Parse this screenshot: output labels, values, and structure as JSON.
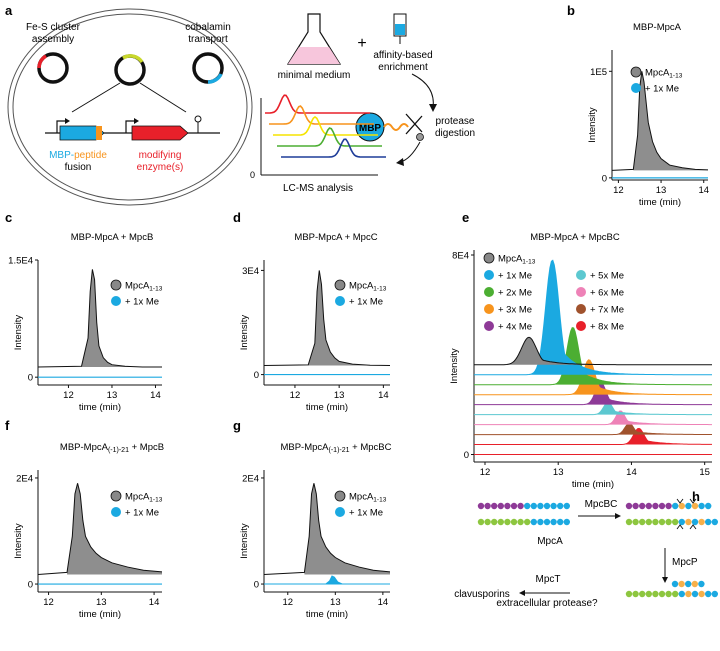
{
  "figure": {
    "panel_letters": {
      "a": "a",
      "b": "b",
      "c": "c",
      "d": "d",
      "e": "e",
      "f": "f",
      "g": "g",
      "h": "h"
    }
  },
  "schematic_a": {
    "fes_label_1": "Fe-S cluster",
    "fes_label_2": "assembly",
    "cobalamin_label_1": "cobalamin",
    "cobalamin_label_2": "transport",
    "mbp_peptide": "MBP-peptide",
    "mbp_part": "MBP-",
    "peptide_part": "peptide",
    "fusion": "fusion",
    "modifying_1": "modifying",
    "modifying_2": "enzyme(s)",
    "minimal_medium": "minimal medium",
    "plus": "+",
    "affinity_1": "affinity-based",
    "affinity_2": "enrichment",
    "mbp": "MBP",
    "protease_1": "protease",
    "protease_2": "digestion",
    "lcms": "LC-MS analysis",
    "zero": "0",
    "colors": {
      "red": "#e8202a",
      "blue": "#1ba9e1",
      "orange": "#f7941d",
      "yellow": "#f5e400",
      "green": "#4cae32",
      "darkblue": "#1f3d99",
      "pink": "#f7c6dc",
      "yellowgreen": "#c9d82c"
    }
  },
  "chart_data": [
    {
      "id": "b",
      "type": "line",
      "title": "MBP-MpcA",
      "ylabel": "Intensity",
      "xlabel": "time (min)",
      "xlim": [
        11.85,
        14.1
      ],
      "ylim": [
        -2000,
        120000
      ],
      "xticks": [
        12,
        13,
        14
      ],
      "ytick_labels": [
        "1E5",
        "0"
      ],
      "ytick_values": [
        100000,
        0
      ],
      "series": [
        {
          "name": "MpcA",
          "name_sub": "1-13",
          "color": "#888888",
          "type": "area",
          "baseline": 7000,
          "peak": {
            "x": 12.55,
            "y": 100000
          },
          "x": [
            12.35,
            12.45,
            12.5,
            12.55,
            12.6,
            12.7,
            12.8,
            12.9,
            13.0,
            13.2,
            13.5,
            13.8,
            14.1
          ],
          "y": [
            8000,
            40000,
            85000,
            100000,
            90000,
            52000,
            34000,
            24000,
            18000,
            12000,
            9500,
            8000,
            7500
          ]
        },
        {
          "name": "+ 1x Me",
          "color": "#1ba9e1",
          "type": "line",
          "baseline": 0
        }
      ]
    },
    {
      "id": "c",
      "type": "line",
      "title": "MBP-MpcA + MpcB",
      "ylabel": "Intensity",
      "xlabel": "time (min)",
      "xlim": [
        11.3,
        14.15
      ],
      "ylim": [
        -1000,
        15000
      ],
      "xticks": [
        12,
        13,
        14
      ],
      "ytick_labels": [
        "1.5E4",
        "0"
      ],
      "ytick_values": [
        15000,
        0
      ],
      "series": [
        {
          "name": "MpcA",
          "name_sub": "1-13",
          "color": "#888888",
          "type": "area",
          "baseline": 1300,
          "x": [
            12.3,
            12.45,
            12.5,
            12.55,
            12.6,
            12.65,
            12.7,
            12.8,
            12.9,
            13.0,
            13.3,
            13.7,
            14.15
          ],
          "y": [
            1400,
            5000,
            11000,
            13800,
            12500,
            7000,
            4000,
            2500,
            1900,
            1600,
            1400,
            1300,
            1300
          ]
        },
        {
          "name": "+ 1x Me",
          "color": "#1ba9e1",
          "type": "line",
          "baseline": 0
        }
      ]
    },
    {
      "id": "d",
      "type": "line",
      "title": "MBP-MpcA + MpcC",
      "ylabel": "Intensity",
      "xlabel": "time (min)",
      "xlim": [
        11.3,
        14.15
      ],
      "ylim": [
        -3000,
        33000
      ],
      "xticks": [
        12,
        13,
        14
      ],
      "ytick_labels": [
        "3E4",
        "0"
      ],
      "ytick_values": [
        30000,
        0
      ],
      "series": [
        {
          "name": "MpcA",
          "name_sub": "1-13",
          "color": "#888888",
          "type": "area",
          "baseline": 2600,
          "x": [
            12.3,
            12.45,
            12.5,
            12.55,
            12.6,
            12.65,
            12.7,
            12.8,
            12.9,
            13.0,
            13.3,
            13.7,
            14.15
          ],
          "y": [
            2800,
            9000,
            24000,
            30000,
            26000,
            16000,
            10000,
            6500,
            4800,
            3800,
            3000,
            2700,
            2600
          ]
        },
        {
          "name": "+ 1x Me",
          "color": "#1ba9e1",
          "type": "line",
          "baseline": 0
        }
      ]
    },
    {
      "id": "e",
      "type": "line",
      "title": "MBP-MpcA + MpcBC",
      "ylabel": "Intensity",
      "xlabel": "time (min)",
      "xlim": [
        11.85,
        15.1
      ],
      "ylim": [
        -3000,
        82000
      ],
      "xticks": [
        12,
        13,
        14,
        15
      ],
      "ytick_labels": [
        "8E4",
        "0"
      ],
      "ytick_values": [
        80000,
        0
      ],
      "series": [
        {
          "name": "MpcA",
          "name_sub": "1-13",
          "color": "#888888",
          "offset": 36000,
          "peak_x": 12.6,
          "height": 11000,
          "width": 0.1
        },
        {
          "name": "+ 1x Me",
          "color": "#1ba9e1",
          "offset": 32000,
          "peak_x": 12.92,
          "height": 46000,
          "width": 0.09
        },
        {
          "name": "+ 2x Me",
          "color": "#4cae32",
          "offset": 28000,
          "peak_x": 13.2,
          "height": 23000,
          "width": 0.08
        },
        {
          "name": "+ 3x Me",
          "color": "#f7941d",
          "offset": 24000,
          "peak_x": 13.42,
          "height": 14000,
          "width": 0.08
        },
        {
          "name": "+ 4x Me",
          "color": "#8e3a97",
          "offset": 20000,
          "peak_x": 13.58,
          "height": 9000,
          "width": 0.07
        },
        {
          "name": "+ 5x Me",
          "color": "#5cc8d0",
          "offset": 16000,
          "peak_x": 13.68,
          "height": 5000,
          "width": 0.06
        },
        {
          "name": "+ 6x Me",
          "color": "#ee82b7",
          "offset": 12000,
          "peak_x": 13.85,
          "height": 5500,
          "width": 0.06
        },
        {
          "name": "+ 7x Me",
          "color": "#a0522d",
          "offset": 8000,
          "peak_x": 13.97,
          "height": 4500,
          "width": 0.06
        },
        {
          "name": "+ 8x Me",
          "color": "#e8202a",
          "offset": 4000,
          "peak_x": 14.1,
          "height": 6500,
          "width": 0.07
        }
      ],
      "base_line": {
        "color": "#e8202a",
        "value": 0
      }
    },
    {
      "id": "f",
      "type": "line",
      "title": "MBP-MpcA",
      "title_sub": "(-1)-21",
      "title_suffix": " + MpcB",
      "ylabel": "Intensity",
      "xlabel": "time (min)",
      "xlim": [
        11.8,
        14.15
      ],
      "ylim": [
        -1500,
        21500
      ],
      "xticks": [
        12,
        13,
        14
      ],
      "ytick_labels": [
        "2E4",
        "0"
      ],
      "ytick_values": [
        20000,
        0
      ],
      "series": [
        {
          "name": "MpcA",
          "name_sub": "1-13",
          "color": "#888888",
          "type": "area",
          "baseline": 1800,
          "x": [
            12.35,
            12.45,
            12.5,
            12.55,
            12.6,
            12.65,
            12.7,
            12.8,
            12.9,
            13.0,
            13.2,
            13.5,
            13.8,
            14.15
          ],
          "y": [
            2200,
            9000,
            17000,
            19000,
            17000,
            12000,
            9000,
            7000,
            5800,
            5000,
            4000,
            3200,
            2600,
            2300
          ]
        },
        {
          "name": "+ 1x Me",
          "color": "#1ba9e1",
          "type": "line",
          "baseline": 0
        }
      ]
    },
    {
      "id": "g",
      "type": "line",
      "title": "MBP-MpcA",
      "title_sub": "(-1)-21",
      "title_suffix": " + MpcBC",
      "ylabel": "Intensity",
      "xlabel": "time (min)",
      "xlim": [
        11.5,
        14.15
      ],
      "ylim": [
        -1500,
        21500
      ],
      "xticks": [
        12,
        13,
        14
      ],
      "ytick_labels": [
        "2E4",
        "0"
      ],
      "ytick_values": [
        20000,
        0
      ],
      "series": [
        {
          "name": "MpcA",
          "name_sub": "1-13",
          "color": "#888888",
          "type": "area",
          "baseline": 1800,
          "x": [
            12.35,
            12.45,
            12.5,
            12.55,
            12.6,
            12.65,
            12.7,
            12.8,
            12.9,
            13.0,
            13.2,
            13.5,
            13.8,
            14.15
          ],
          "y": [
            2200,
            9000,
            17000,
            19000,
            17000,
            12000,
            9000,
            7000,
            5800,
            5000,
            4000,
            3200,
            2600,
            2300
          ]
        },
        {
          "name": "+ 1x Me",
          "color": "#1ba9e1",
          "type": "area",
          "baseline": 0,
          "x": [
            12.8,
            12.88,
            12.93,
            12.98,
            13.05,
            13.15
          ],
          "y": [
            0,
            600,
            1500,
            1300,
            400,
            0
          ]
        }
      ]
    }
  ],
  "schematic_h": {
    "mpca": "MpcA",
    "mpcbc": "MpcBC",
    "mpcp": "MpcP",
    "mpct": "MpcT",
    "clavusporins": "clavusporins",
    "extracellular": "extracellular protease?",
    "colors": {
      "purple": "#8e3a97",
      "green": "#8dc63f",
      "blue": "#1ba9e1",
      "orange": "#f7b04a"
    }
  }
}
